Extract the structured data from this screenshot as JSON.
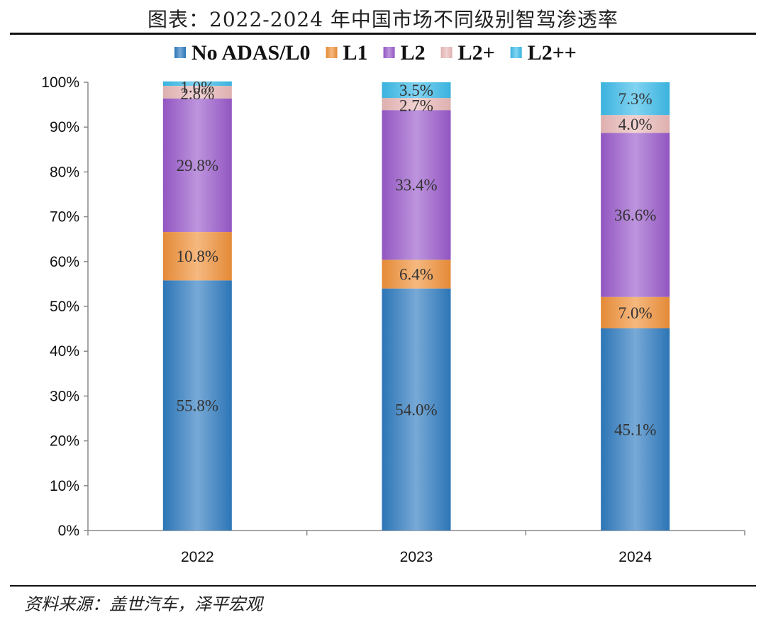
{
  "header": {
    "title": "图表：2022-2024 年中国市场不同级别智驾渗透率"
  },
  "footer": {
    "source": "资料来源：盖世汽车，泽平宏观"
  },
  "chart_data": {
    "type": "bar",
    "stacked": true,
    "categories": [
      "2022",
      "2023",
      "2024"
    ],
    "series": [
      {
        "name": "No ADAS/L0",
        "values": [
          55.8,
          54.0,
          45.1
        ],
        "color": "#2E7BC0"
      },
      {
        "name": "L1",
        "values": [
          10.8,
          6.4,
          7.0
        ],
        "color": "#F0913A"
      },
      {
        "name": "L2",
        "values": [
          29.8,
          33.4,
          36.6
        ],
        "color": "#9A5BCB"
      },
      {
        "name": "L2+",
        "values": [
          2.8,
          2.7,
          4.0
        ],
        "color": "#EAB9B8"
      },
      {
        "name": "L2++",
        "values": [
          1.0,
          3.5,
          7.3
        ],
        "color": "#3DBBEA"
      }
    ],
    "data_labels": [
      [
        "55.8%",
        "54.0%",
        "45.1%"
      ],
      [
        "10.8%",
        "6.4%",
        "7.0%"
      ],
      [
        "29.8%",
        "33.4%",
        "36.6%"
      ],
      [
        "2.8%",
        "2.7%",
        "4.0%"
      ],
      [
        "1.0%",
        "3.5%",
        "7.3%"
      ]
    ],
    "ylim": [
      0,
      100
    ],
    "yticks": [
      "0%",
      "10%",
      "20%",
      "30%",
      "40%",
      "50%",
      "60%",
      "70%",
      "80%",
      "90%",
      "100%"
    ],
    "xlabel": "",
    "ylabel": "",
    "legend_position": "top",
    "grid": false
  }
}
